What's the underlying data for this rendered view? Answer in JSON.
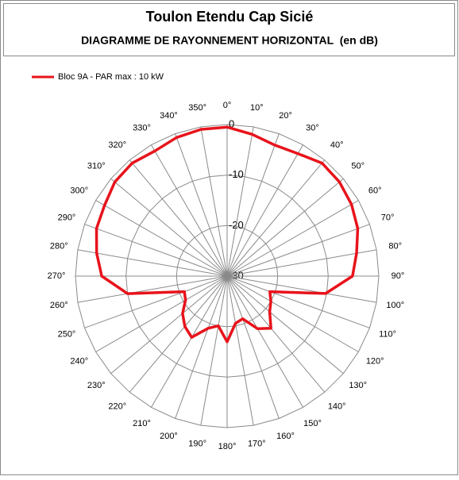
{
  "chart_data": {
    "type": "polar",
    "title": "Toulon Etendu Cap Sicié",
    "subtitle": "DIAGRAMME DE RAYONNEMENT HORIZONTAL  (en dB)",
    "categories": [
      "0°",
      "10°",
      "20°",
      "30°",
      "40°",
      "50°",
      "60°",
      "70°",
      "80°",
      "90°",
      "100°",
      "110°",
      "120°",
      "130°",
      "140°",
      "150°",
      "160°",
      "170°",
      "180°",
      "190°",
      "200°",
      "210°",
      "220°",
      "230°",
      "240°",
      "250°",
      "260°",
      "270°",
      "280°",
      "290°",
      "300°",
      "310°",
      "320°",
      "330°",
      "340°",
      "350°"
    ],
    "series": [
      {
        "name": "Bloc 9A - PAR max : 10 kW",
        "color": "#e8131b",
        "values": [
          -0.5,
          -1.5,
          -2.4,
          -2,
          -0.8,
          -1,
          -1.6,
          -2.5,
          -4,
          -5.2,
          -10.2,
          -21,
          -20,
          -19,
          -16.5,
          -18,
          -21,
          -20.5,
          -17,
          -20,
          -19,
          -16,
          -17,
          -18.5,
          -20.5,
          -21,
          -10,
          -5.2,
          -3.8,
          -2.5,
          -2,
          -1,
          -0.8,
          -1.4,
          -0.8,
          -0.5
        ]
      }
    ],
    "rlim": [
      -30,
      0
    ],
    "rticks": [
      0,
      -10,
      -20,
      -30
    ],
    "grid": true
  }
}
